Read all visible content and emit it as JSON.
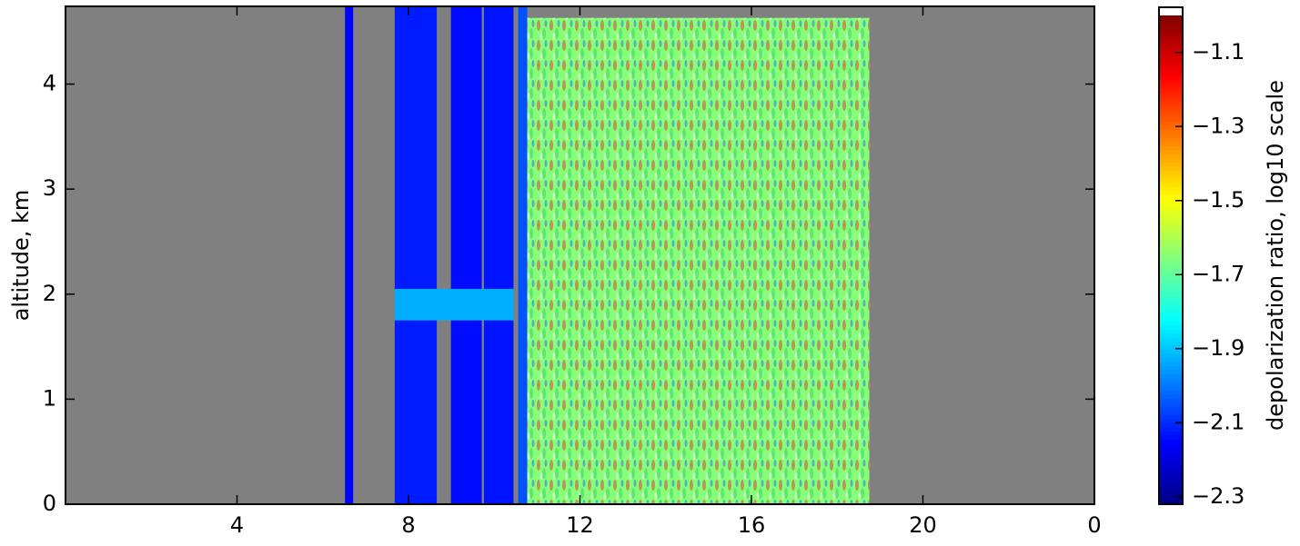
{
  "chart_data": {
    "type": "heatmap",
    "y_label": "altitude, km",
    "colorbar_label": "depolarization ratio, log10 scale",
    "colormap": "jet",
    "background": "#808080",
    "xlim": [
      0,
      24
    ],
    "xticks": [
      4,
      8,
      12,
      16,
      20,
      {
        "value": 24,
        "label": "0"
      }
    ],
    "ylim": [
      0,
      4.74
    ],
    "yticks": [
      0,
      1,
      2,
      3,
      4
    ],
    "clim": [
      -2.32,
      -1.0
    ],
    "cticks": [
      {
        "value": -1.1,
        "label": "−1.1"
      },
      {
        "value": -1.3,
        "label": "−1.3"
      },
      {
        "value": -1.5,
        "label": "−1.5"
      },
      {
        "value": -1.7,
        "label": "−1.7"
      },
      {
        "value": -1.9,
        "label": "−1.9"
      },
      {
        "value": -2.1,
        "label": "−2.1"
      },
      {
        "value": -2.3,
        "label": "−2.3"
      }
    ],
    "regions": [
      {
        "x": [
          6.52,
          6.71
        ],
        "y": [
          0,
          4.74
        ],
        "value": -2.15
      },
      {
        "x": [
          7.68,
          8.66
        ],
        "y": [
          0,
          4.74
        ],
        "value": -2.12
      },
      {
        "x": [
          8.99,
          9.71
        ],
        "y": [
          0,
          4.74
        ],
        "value": -2.14
      },
      {
        "x": [
          9.76,
          10.45
        ],
        "y": [
          0,
          4.74
        ],
        "value": -2.13
      },
      {
        "x": [
          10.56,
          10.77
        ],
        "y": [
          0,
          4.74
        ],
        "value": -2.05
      },
      {
        "x": [
          7.68,
          10.45
        ],
        "y": [
          1.75,
          2.05
        ],
        "value": -1.93
      },
      {
        "x": [
          10.77,
          18.75
        ],
        "y": [
          0,
          4.63
        ],
        "value": -1.65
      }
    ]
  }
}
